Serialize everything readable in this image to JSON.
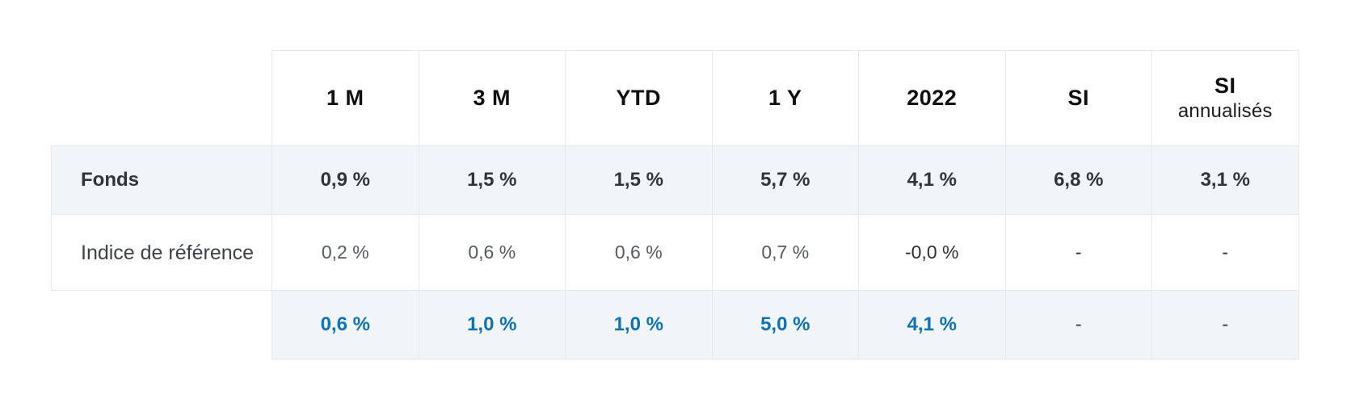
{
  "table": {
    "headers": [
      {
        "main": "1 M",
        "sub": ""
      },
      {
        "main": "3 M",
        "sub": ""
      },
      {
        "main": "YTD",
        "sub": ""
      },
      {
        "main": "1 Y",
        "sub": ""
      },
      {
        "main": "2022",
        "sub": ""
      },
      {
        "main": "SI",
        "sub": ""
      },
      {
        "main": "SI",
        "sub": "annualisés"
      }
    ],
    "fonds": {
      "label": "Fonds",
      "values": [
        "0,9 %",
        "1,5 %",
        "1,5 %",
        "5,7 %",
        "4,1 %",
        "6,8 %",
        "3,1 %"
      ]
    },
    "reference": {
      "label": "Indice de référence",
      "values": [
        "0,2 %",
        "0,6 %",
        "0,6 %",
        "0,7 %",
        "-0,0 %",
        "-",
        "-"
      ]
    },
    "difference": {
      "label": "",
      "values": [
        "0,6 %",
        "1,0 %",
        "1,0 %",
        "5,0 %",
        "4,1 %",
        "-",
        "-"
      ]
    }
  },
  "colors": {
    "accent_blue": "#0e72b8",
    "row_shade": "#f1f5f9",
    "border": "#e3e9ef"
  }
}
